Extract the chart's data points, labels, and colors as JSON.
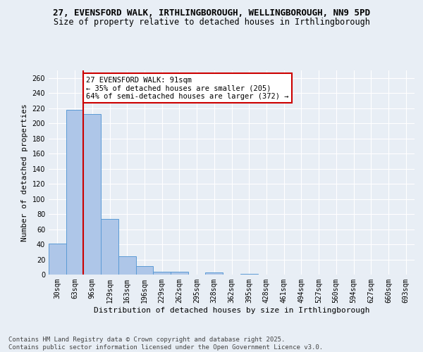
{
  "title_line1": "27, EVENSFORD WALK, IRTHLINGBOROUGH, WELLINGBOROUGH, NN9 5PD",
  "title_line2": "Size of property relative to detached houses in Irthlingborough",
  "xlabel": "Distribution of detached houses by size in Irthlingborough",
  "ylabel": "Number of detached properties",
  "categories": [
    "30sqm",
    "63sqm",
    "96sqm",
    "129sqm",
    "163sqm",
    "196sqm",
    "229sqm",
    "262sqm",
    "295sqm",
    "328sqm",
    "362sqm",
    "395sqm",
    "428sqm",
    "461sqm",
    "494sqm",
    "527sqm",
    "560sqm",
    "594sqm",
    "627sqm",
    "660sqm",
    "693sqm"
  ],
  "values": [
    41,
    218,
    212,
    74,
    24,
    11,
    4,
    4,
    0,
    3,
    0,
    1,
    0,
    0,
    0,
    0,
    0,
    0,
    0,
    0,
    0
  ],
  "bar_color": "#aec6e8",
  "bar_edge_color": "#5b9bd5",
  "property_line_color": "#cc0000",
  "annotation_text": "27 EVENSFORD WALK: 91sqm\n← 35% of detached houses are smaller (205)\n64% of semi-detached houses are larger (372) →",
  "annotation_box_color": "#ffffff",
  "annotation_box_edge_color": "#cc0000",
  "ylim": [
    0,
    270
  ],
  "yticks": [
    0,
    20,
    40,
    60,
    80,
    100,
    120,
    140,
    160,
    180,
    200,
    220,
    240,
    260
  ],
  "footnote": "Contains HM Land Registry data © Crown copyright and database right 2025.\nContains public sector information licensed under the Open Government Licence v3.0.",
  "background_color": "#e8eef5",
  "title_fontsize": 9,
  "subtitle_fontsize": 8.5,
  "axis_label_fontsize": 8,
  "tick_fontsize": 7,
  "annotation_fontsize": 7.5,
  "footnote_fontsize": 6.5
}
